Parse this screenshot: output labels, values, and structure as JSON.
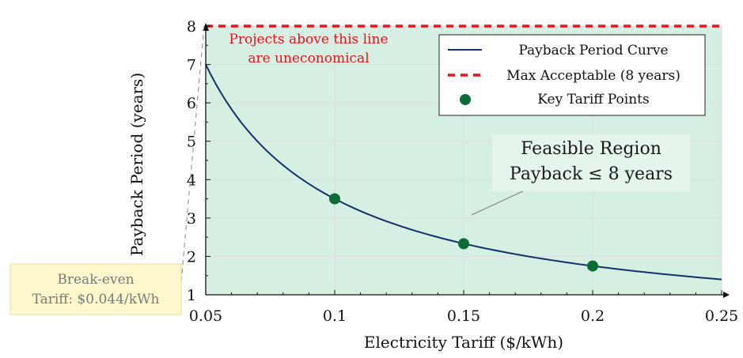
{
  "chart_data": {
    "type": "line",
    "xlabel": "Electricity Tariff ($/kWh)",
    "ylabel": "Payback Period (years)",
    "xlim": [
      0.05,
      0.25
    ],
    "ylim": [
      1,
      8
    ],
    "x_ticks": [
      "0.05",
      "0.1",
      "0.15",
      "0.2",
      "0.25"
    ],
    "y_ticks": [
      "1",
      "2",
      "3",
      "4",
      "5",
      "6",
      "7",
      "8"
    ],
    "grid": true,
    "legend_position": "top-right",
    "series": [
      {
        "name": "Payback Period Curve",
        "kind": "curve",
        "color": "#13326b",
        "x": [
          0.05,
          0.06,
          0.07,
          0.08,
          0.09,
          0.1,
          0.11,
          0.12,
          0.13,
          0.14,
          0.15,
          0.16,
          0.17,
          0.18,
          0.19,
          0.2,
          0.21,
          0.22,
          0.23,
          0.24,
          0.25
        ],
        "y": [
          7.0,
          5.83,
          5.0,
          4.38,
          3.89,
          3.5,
          3.18,
          2.92,
          2.69,
          2.5,
          2.33,
          2.19,
          2.06,
          1.94,
          1.84,
          1.75,
          1.67,
          1.59,
          1.52,
          1.46,
          1.4
        ]
      },
      {
        "name": "Max Acceptable (8 years)",
        "kind": "hline",
        "color": "#e8121b",
        "y": 8
      },
      {
        "name": "Key Tariff Points",
        "kind": "points",
        "color": "#0b6b35",
        "x": [
          0.1,
          0.15,
          0.2
        ],
        "y": [
          3.5,
          2.33,
          1.75
        ]
      }
    ],
    "annotations": {
      "uneconomical": [
        "Projects above this line",
        "are uneconomical"
      ],
      "feasible": [
        "Feasible Region",
        "Payback ≤ 8 years"
      ],
      "breakeven": [
        "Break-even",
        "Tariff: $0.044/kWh"
      ]
    },
    "colors": {
      "feasible_fill": "#d5efe2",
      "breakeven_box": "#fdf7cc",
      "grid": "#dddddd"
    }
  }
}
